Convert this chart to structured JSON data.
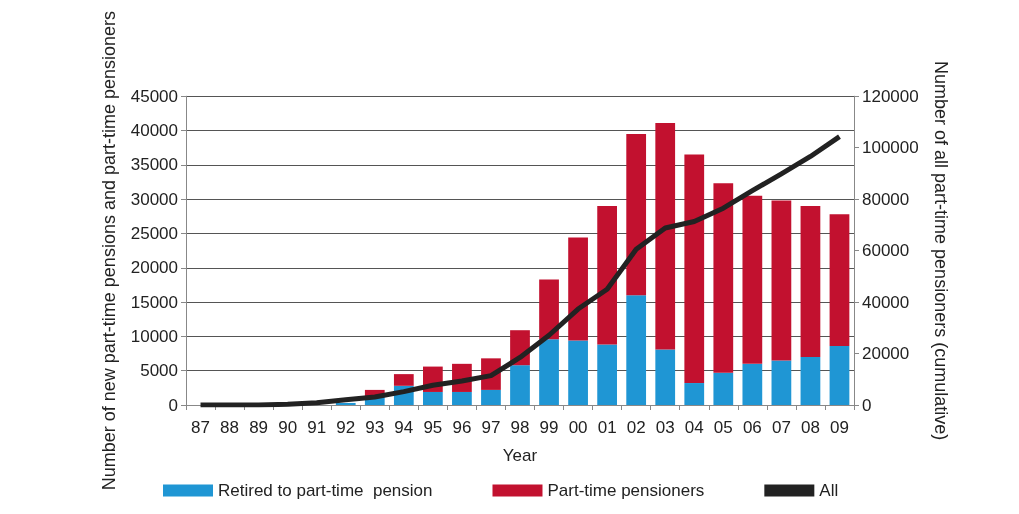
{
  "chart_data": {
    "type": "bar",
    "stacked": true,
    "xlabel": "Year",
    "ylabel": "Number of new part-time pensions and part-time pensioners",
    "y2label": "Number of all part-time pensioners (cumulative)",
    "categories": [
      "87",
      "88",
      "89",
      "90",
      "91",
      "92",
      "93",
      "94",
      "95",
      "96",
      "97",
      "98",
      "99",
      "00",
      "01",
      "02",
      "03",
      "04",
      "05",
      "06",
      "07",
      "08",
      "09"
    ],
    "series": [
      {
        "name": "Retired to part-time  pension",
        "color": "#1f96d4",
        "values": [
          0,
          0,
          0,
          100,
          null,
          300,
          1300,
          2800,
          1900,
          1900,
          2200,
          5800,
          9600,
          9400,
          8800,
          16000,
          8100,
          3200,
          4700,
          6000,
          6500,
          7000,
          8600
        ]
      },
      {
        "name": "Part-time pensioners",
        "color": "#c2112f",
        "values": [
          0,
          0,
          0,
          200,
          null,
          null,
          900,
          1700,
          3700,
          4100,
          4600,
          5100,
          8700,
          15000,
          20200,
          23500,
          33000,
          33300,
          27600,
          24500,
          23300,
          22000,
          19200
        ]
      },
      {
        "name": "All",
        "type": "line",
        "axis": "y2",
        "color": "#222222",
        "values": [
          0,
          0,
          0,
          300,
          900,
          2000,
          3100,
          5200,
          7700,
          9300,
          11400,
          18500,
          27100,
          37300,
          45000,
          60500,
          68800,
          71300,
          76500,
          83300,
          89800,
          96600,
          104300
        ]
      }
    ],
    "ylim": [
      0,
      45000
    ],
    "yticks": [
      0,
      5000,
      10000,
      15000,
      20000,
      25000,
      30000,
      35000,
      40000,
      45000
    ],
    "y2lim": [
      0,
      120000
    ],
    "y2ticks": [
      0,
      20000,
      40000,
      60000,
      80000,
      100000,
      120000
    ],
    "grid": "y",
    "legend": "bottom",
    "marker": "none"
  }
}
